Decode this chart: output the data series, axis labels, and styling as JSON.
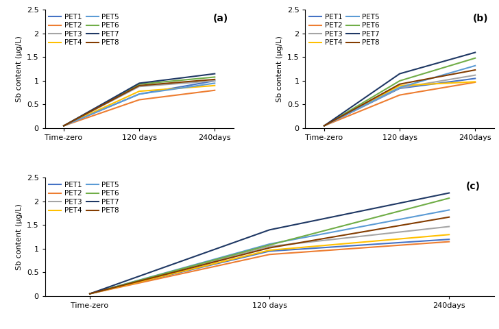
{
  "x_labels": [
    "Time-zero",
    "120 days",
    "240days"
  ],
  "x_positions": [
    0,
    1,
    2
  ],
  "ylabel": "Sb content (μg/L)",
  "ylim": [
    0,
    2.5
  ],
  "yticks": [
    0,
    0.5,
    1.0,
    1.5,
    2.0,
    2.5
  ],
  "series_names": [
    "PET1",
    "PET2",
    "PET3",
    "PET4",
    "PET5",
    "PET6",
    "PET7",
    "PET8"
  ],
  "colors": {
    "PET1": "#4472C4",
    "PET2": "#ED7D31",
    "PET3": "#A5A5A5",
    "PET4": "#FFC000",
    "PET5": "#5B9BD5",
    "PET6": "#70AD47",
    "PET7": "#1F3864",
    "PET8": "#833C00"
  },
  "legend_col1": [
    "PET1",
    "PET3",
    "PET5",
    "PET7"
  ],
  "legend_col2": [
    "PET2",
    "PET4",
    "PET6",
    "PET8"
  ],
  "panel_a": {
    "label": "(a)",
    "data": {
      "PET1": [
        0.05,
        0.72,
        1.0
      ],
      "PET2": [
        0.05,
        0.6,
        0.8
      ],
      "PET3": [
        0.05,
        0.88,
        1.0
      ],
      "PET4": [
        0.05,
        0.78,
        0.9
      ],
      "PET5": [
        0.05,
        0.72,
        0.95
      ],
      "PET6": [
        0.05,
        0.93,
        1.08
      ],
      "PET7": [
        0.05,
        0.95,
        1.15
      ],
      "PET8": [
        0.05,
        0.9,
        1.03
      ]
    }
  },
  "panel_b": {
    "label": "(b)",
    "data": {
      "PET1": [
        0.05,
        0.84,
        1.05
      ],
      "PET2": [
        0.05,
        0.7,
        0.97
      ],
      "PET3": [
        0.05,
        0.85,
        1.12
      ],
      "PET4": [
        0.05,
        0.9,
        0.98
      ],
      "PET5": [
        0.05,
        0.86,
        1.32
      ],
      "PET6": [
        0.05,
        1.0,
        1.48
      ],
      "PET7": [
        0.05,
        1.15,
        1.6
      ],
      "PET8": [
        0.05,
        0.93,
        1.23
      ]
    }
  },
  "panel_c": {
    "label": "(c)",
    "data": {
      "PET1": [
        0.05,
        0.95,
        1.2
      ],
      "PET2": [
        0.05,
        0.88,
        1.15
      ],
      "PET3": [
        0.05,
        1.05,
        1.47
      ],
      "PET4": [
        0.05,
        0.97,
        1.3
      ],
      "PET5": [
        0.05,
        1.1,
        1.82
      ],
      "PET6": [
        0.05,
        1.08,
        2.07
      ],
      "PET7": [
        0.05,
        1.4,
        2.18
      ],
      "PET8": [
        0.05,
        1.02,
        1.67
      ]
    }
  }
}
